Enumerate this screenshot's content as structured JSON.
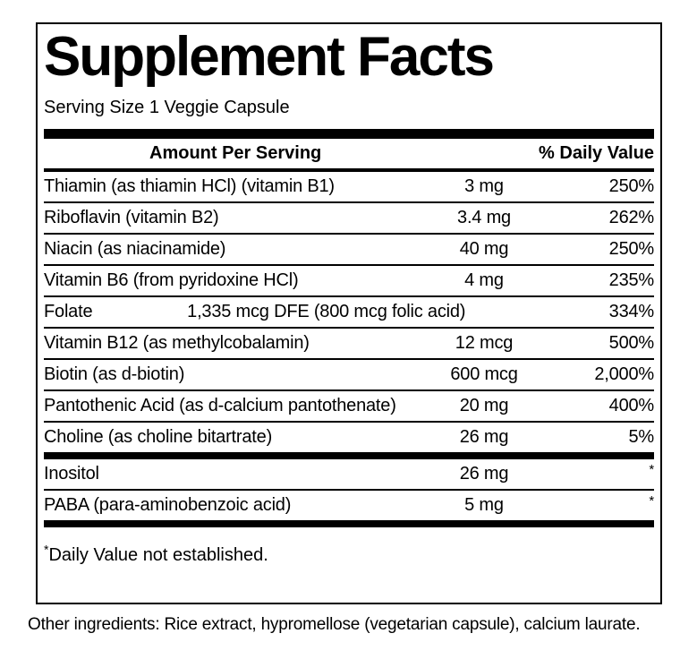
{
  "label": {
    "title": "Supplement Facts",
    "serving_size": "Serving Size 1 Veggie Capsule",
    "columns": {
      "amount": "Amount Per Serving",
      "daily_value": "% Daily Value"
    },
    "nutrients": [
      {
        "name": "Thiamin (as thiamin HCl) (vitamin B1)",
        "amount": "3 mg",
        "dv": "250%"
      },
      {
        "name": "Riboflavin (vitamin B2)",
        "amount": "3.4 mg",
        "dv": "262%"
      },
      {
        "name": "Niacin (as niacinamide)",
        "amount": "40 mg",
        "dv": "250%"
      },
      {
        "name": "Vitamin B6 (from pyridoxine HCl)",
        "amount": "4 mg",
        "dv": "235%"
      },
      {
        "name": "Folate",
        "amount": "1,335 mcg DFE (800 mcg folic acid)",
        "dv": "334%"
      },
      {
        "name": "Vitamin B12 (as methylcobalamin)",
        "amount": "12 mcg",
        "dv": "500%"
      },
      {
        "name": "Biotin (as d-biotin)",
        "amount": "600 mcg",
        "dv": "2,000%"
      },
      {
        "name": "Pantothenic Acid (as d-calcium pantothenate)",
        "amount": "20 mg",
        "dv": "400%"
      },
      {
        "name": "Choline (as choline bitartrate)",
        "amount": "26 mg",
        "dv": "5%"
      }
    ],
    "other_nutrients": [
      {
        "name": "Inositol",
        "amount": "26 mg",
        "dv": "*"
      },
      {
        "name": "PABA (para-aminobenzoic acid)",
        "amount": "5 mg",
        "dv": "*"
      }
    ],
    "footnote_marker": "*",
    "footnote_text": "Daily Value not established.",
    "other_ingredients": "Other ingredients: Rice extract, hypromellose (vegetarian capsule), calcium laurate.",
    "colors": {
      "text": "#000000",
      "background": "#ffffff",
      "rule": "#000000"
    }
  }
}
